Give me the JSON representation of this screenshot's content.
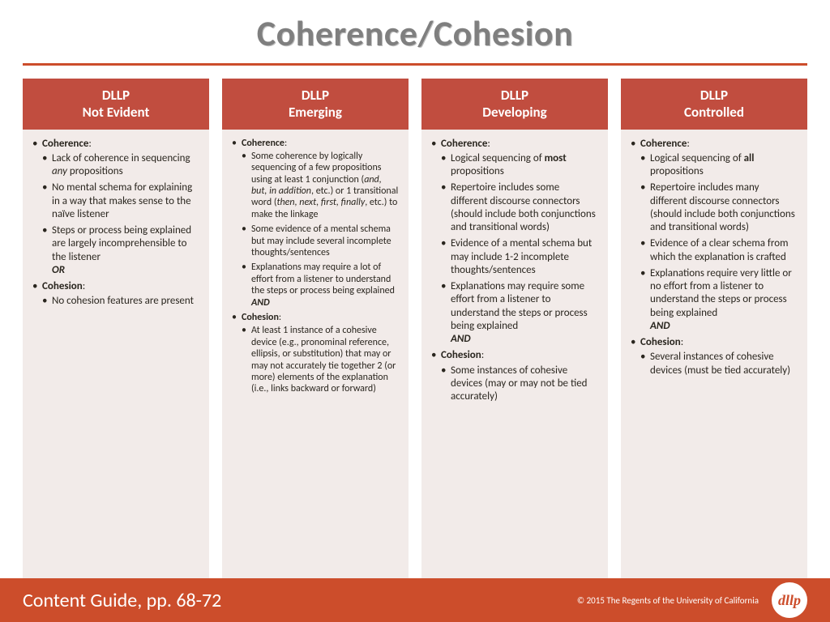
{
  "title": "Coherence/Cohesion",
  "colors": {
    "accent": "#cc4d2b",
    "header_bg": "#c14d3f",
    "column_bg": "#f2ebe9",
    "title_gray": "#7f7f7f"
  },
  "columns": [
    {
      "head_line1": "DLLP",
      "head_line2": "Not Evident",
      "small": false,
      "items": [
        {
          "label_html": "<span class='b'>Coherence</span>:",
          "children": [
            {
              "html": "Lack of coherence in sequencing <span class='i'>any</span> propositions"
            },
            {
              "html": "No mental schema for explaining in a way that makes sense to the naïve listener"
            },
            {
              "html": "Steps or process being explained are largely incomprehensible to the listener<br><span class='i b'>OR</span>"
            }
          ]
        },
        {
          "label_html": "<span class='b'>Cohesion</span>:",
          "children": [
            {
              "html": "No cohesion features are present"
            }
          ]
        }
      ]
    },
    {
      "head_line1": "DLLP",
      "head_line2": "Emerging",
      "small": true,
      "items": [
        {
          "label_html": "<span class='b'>Coherence</span>:",
          "children": [
            {
              "html": "Some coherence by logically sequencing of a few propositions using at least 1 conjunction (<span class='i'>and, but, in addition</span>, etc.) or 1 transitional word (<span class='i'>then, next, first, finally</span>, etc.) to make the linkage"
            },
            {
              "html": "Some evidence of a mental schema but may include several incomplete thoughts/sentences"
            },
            {
              "html": "Explanations may require a lot of effort from a listener to understand the steps or process being explained<br><span class='i b'>AND</span>"
            }
          ]
        },
        {
          "label_html": "<span class='b'>Cohesion</span>:",
          "children": [
            {
              "html": "At least 1 instance of a cohesive device (e.g., pronominal reference, ellipsis, or substitution) that may or may not accurately tie together 2 (or more) elements of the explanation (i.e., links backward or forward)"
            }
          ]
        }
      ]
    },
    {
      "head_line1": "DLLP",
      "head_line2": "Developing",
      "small": false,
      "items": [
        {
          "label_html": "<span class='b'>Coherence</span>:",
          "children": [
            {
              "html": "Logical sequencing of <span class='b'>most</span> propositions"
            },
            {
              "html": "Repertoire includes some different discourse connectors (should include both conjunctions and transitional words)"
            },
            {
              "html": "Evidence of a mental schema but may include 1-2 incomplete thoughts/sentences"
            },
            {
              "html": "Explanations may require some effort from a listener to understand the steps or process being explained<br><span class='i b'>AND</span>"
            }
          ]
        },
        {
          "label_html": "<span class='b'>Cohesion</span>:",
          "children": [
            {
              "html": "Some instances of cohesive devices (may or may not be tied accurately)"
            }
          ]
        }
      ]
    },
    {
      "head_line1": "DLLP",
      "head_line2": "Controlled",
      "small": false,
      "items": [
        {
          "label_html": "<span class='b'>Coherence</span>:",
          "children": [
            {
              "html": "Logical sequencing of <span class='b'>all</span> propositions"
            },
            {
              "html": "Repertoire includes many different discourse connectors (should include both conjunctions and transitional words)"
            },
            {
              "html": "Evidence of a clear schema from which the explanation is crafted"
            },
            {
              "html": "Explanations require very little or no effort from a listener to understand the steps or process being explained<br><span class='i b'>AND</span>"
            }
          ]
        },
        {
          "label_html": "<span class='b'>Cohesion</span>:",
          "children": [
            {
              "html": "Several instances of cohesive devices (must be tied accurately)"
            }
          ]
        }
      ]
    }
  ],
  "footer": {
    "left": "Content Guide, pp. 68-72",
    "right": "© 2015 The Regents of the University of California",
    "logo_text": "dllp"
  }
}
